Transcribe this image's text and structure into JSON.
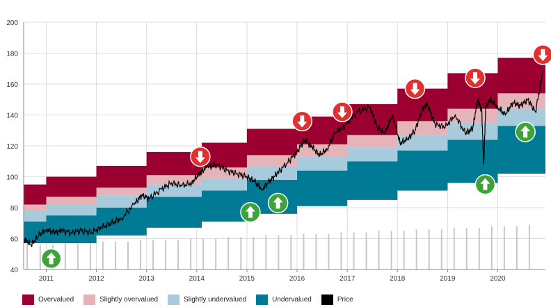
{
  "colors": {
    "overvalued": "#9c0031",
    "slightly_overvalued": "#e5b3b8",
    "slightly_undervalued": "#a7cbdc",
    "undervalued": "#007a95",
    "price": "#000000",
    "volume": "#c8c8c8",
    "signal_buy": "#3ea23a",
    "signal_sell": "#e03131",
    "grid": "#dcdcdc"
  },
  "chart_data": {
    "type": "area",
    "title": "",
    "xlabel": "",
    "ylabel": "",
    "ylim": [
      40,
      200
    ],
    "yticks": [
      40,
      60,
      80,
      100,
      120,
      140,
      160,
      180,
      200
    ],
    "xlim": [
      2010.55,
      2020.95
    ],
    "xticks": [
      2011,
      2012,
      2013,
      2014,
      2015,
      2016,
      2017,
      2018,
      2019,
      2020
    ],
    "xtick_labels": [
      "2011",
      "2012",
      "2013",
      "2014",
      "2015",
      "2016",
      "2017",
      "2018",
      "2019",
      "2020"
    ],
    "grid": true,
    "legend_position": "bottom",
    "legend": [
      "Overvalued",
      "Slightly overvalued",
      "Slightly undervalued",
      "Undervalued",
      "Price"
    ],
    "valuation_bands": {
      "note": "step bands; each step: start year, bottom, undervalued top, slightly undervalued top, slightly overvalued top, overvalued top",
      "steps": [
        {
          "x": 2010.55,
          "bottom": 57,
          "undervalued": 71,
          "slightly_undervalued": 78,
          "slightly_overvalued": 82,
          "overvalued": 95
        },
        {
          "x": 2011.0,
          "bottom": 57,
          "undervalued": 75,
          "slightly_undervalued": 82,
          "slightly_overvalued": 87,
          "overvalued": 100
        },
        {
          "x": 2012.0,
          "bottom": 62,
          "undervalued": 80,
          "slightly_undervalued": 88,
          "slightly_overvalued": 93,
          "overvalued": 107
        },
        {
          "x": 2013.0,
          "bottom": 67,
          "undervalued": 87,
          "slightly_undervalued": 95,
          "slightly_overvalued": 101,
          "overvalued": 116
        },
        {
          "x": 2014.1,
          "bottom": 71,
          "undervalued": 91,
          "slightly_undervalued": 99,
          "slightly_overvalued": 106,
          "overvalued": 122
        },
        {
          "x": 2015.0,
          "bottom": 76,
          "undervalued": 98,
          "slightly_undervalued": 107,
          "slightly_overvalued": 114,
          "overvalued": 131
        },
        {
          "x": 2016.0,
          "bottom": 81,
          "undervalued": 104,
          "slightly_undervalued": 113,
          "slightly_overvalued": 121,
          "overvalued": 139
        },
        {
          "x": 2017.0,
          "bottom": 85,
          "undervalued": 110,
          "slightly_undervalued": 119,
          "slightly_overvalued": 127,
          "overvalued": 147
        },
        {
          "x": 2018.0,
          "bottom": 91,
          "undervalued": 117,
          "slightly_undervalued": 127,
          "slightly_overvalued": 136,
          "overvalued": 157
        },
        {
          "x": 2019.0,
          "bottom": 96,
          "undervalued": 124,
          "slightly_undervalued": 135,
          "slightly_overvalued": 144,
          "overvalued": 167
        },
        {
          "x": 2020.0,
          "bottom": 102,
          "undervalued": 133,
          "slightly_undervalued": 144,
          "slightly_overvalued": 154,
          "overvalued": 177
        }
      ]
    },
    "price": {
      "name": "Price",
      "x": [
        2010.55,
        2010.7,
        2010.85,
        2011.0,
        2011.15,
        2011.3,
        2011.5,
        2011.7,
        2011.9,
        2012.1,
        2012.3,
        2012.5,
        2012.75,
        2012.9,
        2013.05,
        2013.3,
        2013.5,
        2013.7,
        2013.9,
        2014.05,
        2014.2,
        2014.4,
        2014.6,
        2014.8,
        2015.0,
        2015.15,
        2015.3,
        2015.45,
        2015.6,
        2015.8,
        2016.0,
        2016.15,
        2016.3,
        2016.45,
        2016.6,
        2016.75,
        2016.95,
        2017.2,
        2017.45,
        2017.6,
        2017.75,
        2017.9,
        2018.05,
        2018.2,
        2018.35,
        2018.5,
        2018.6,
        2018.75,
        2018.95,
        2019.15,
        2019.35,
        2019.5,
        2019.6,
        2019.68,
        2019.72,
        2019.76,
        2019.85,
        2020.0,
        2020.15,
        2020.3,
        2020.45,
        2020.6,
        2020.75,
        2020.9
      ],
      "values": [
        60,
        56,
        62,
        66,
        64,
        65,
        64,
        65,
        64,
        67,
        70,
        73,
        82,
        88,
        86,
        92,
        96,
        94,
        96,
        102,
        106,
        108,
        104,
        102,
        100,
        97,
        92,
        97,
        102,
        109,
        116,
        124,
        119,
        114,
        118,
        128,
        133,
        142,
        145,
        132,
        128,
        140,
        122,
        124,
        130,
        144,
        147,
        134,
        132,
        140,
        128,
        131,
        150,
        143,
        108,
        145,
        150,
        145,
        140,
        148,
        146,
        150,
        142,
        168
      ]
    },
    "volume_bars": {
      "name": "",
      "x": [
        2010.62,
        2010.88,
        2011.13,
        2011.38,
        2011.63,
        2011.88,
        2012.13,
        2012.38,
        2012.63,
        2012.88,
        2013.13,
        2013.38,
        2013.63,
        2013.88,
        2014.13,
        2014.38,
        2014.63,
        2014.88,
        2015.13,
        2015.38,
        2015.63,
        2015.88,
        2016.13,
        2016.38,
        2016.63,
        2016.88,
        2017.13,
        2017.38,
        2017.63,
        2017.88,
        2018.13,
        2018.38,
        2018.63,
        2018.88,
        2019.13,
        2019.38,
        2019.63,
        2019.88,
        2020.13,
        2020.38,
        2020.63
      ],
      "values": [
        56,
        56,
        56,
        57,
        57,
        57,
        58,
        58,
        58,
        59,
        59,
        59,
        59,
        60,
        60,
        60,
        61,
        61,
        61,
        62,
        62,
        62,
        63,
        63,
        63,
        64,
        64,
        64,
        65,
        65,
        65,
        66,
        66,
        66,
        67,
        67,
        67,
        68,
        68,
        68,
        69
      ]
    },
    "signals": [
      {
        "type": "buy",
        "x": 2011.1,
        "y": 47
      },
      {
        "type": "sell",
        "x": 2014.07,
        "y": 113
      },
      {
        "type": "buy",
        "x": 2015.07,
        "y": 77
      },
      {
        "type": "buy",
        "x": 2015.62,
        "y": 83
      },
      {
        "type": "sell",
        "x": 2016.1,
        "y": 136
      },
      {
        "type": "sell",
        "x": 2016.9,
        "y": 142
      },
      {
        "type": "sell",
        "x": 2018.35,
        "y": 157
      },
      {
        "type": "sell",
        "x": 2019.55,
        "y": 164
      },
      {
        "type": "buy",
        "x": 2019.75,
        "y": 95
      },
      {
        "type": "buy",
        "x": 2020.55,
        "y": 129
      },
      {
        "type": "sell",
        "x": 2020.9,
        "y": 179
      }
    ]
  }
}
